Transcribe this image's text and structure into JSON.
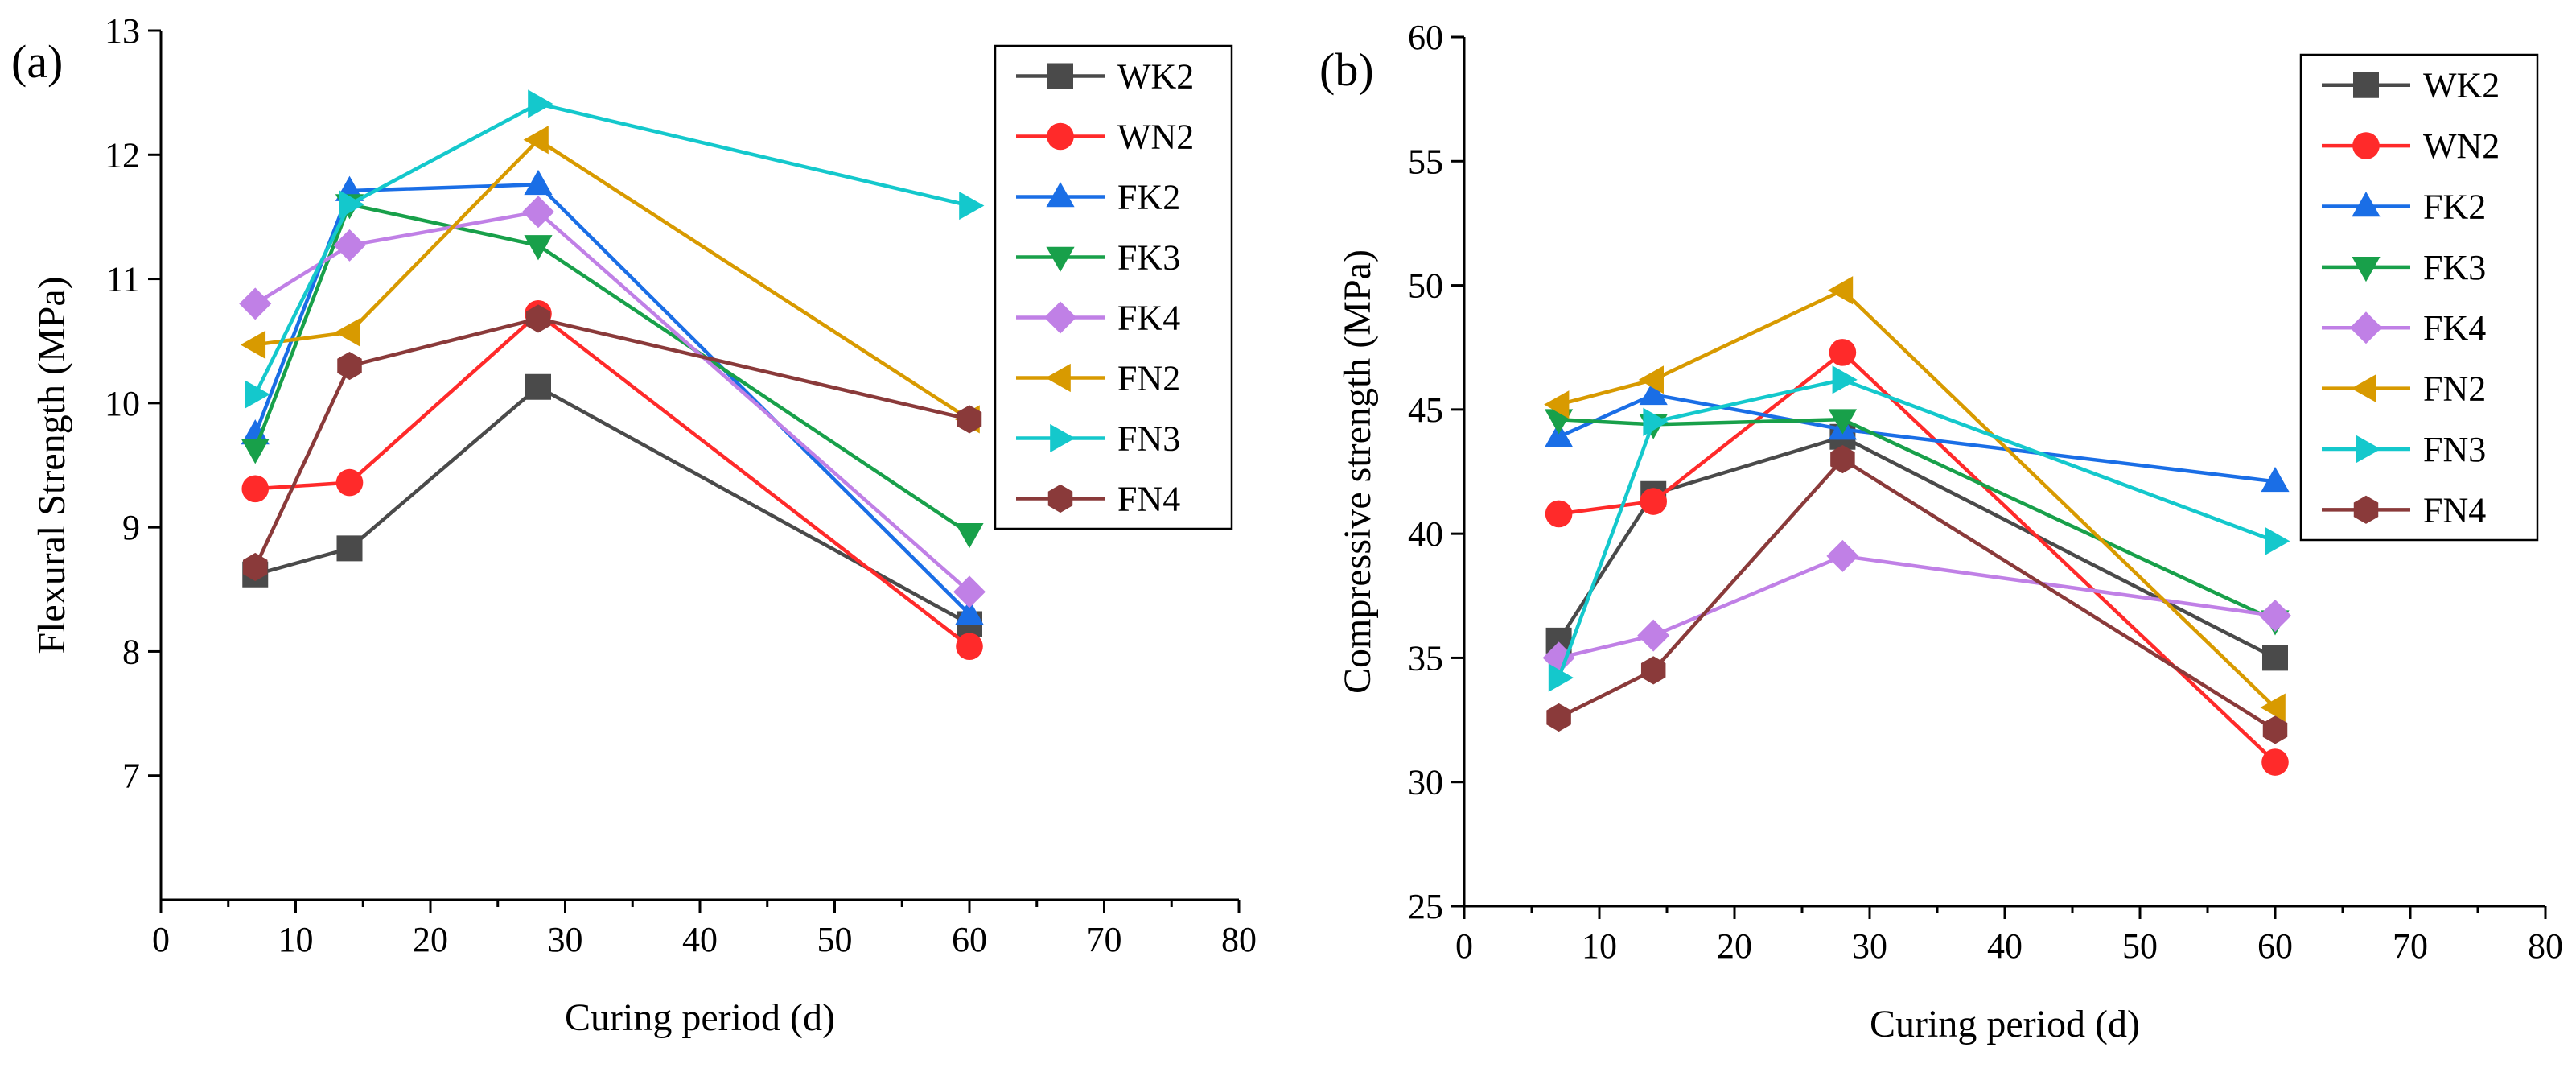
{
  "chart_data": [
    {
      "type": "line",
      "panel_label": "(a)",
      "title": "",
      "xlabel": "Curing period (d)",
      "ylabel": "Flexural Strength (MPa)",
      "xlim": [
        0,
        80
      ],
      "ylim": [
        6,
        13
      ],
      "xticks": [
        0,
        10,
        20,
        30,
        40,
        50,
        60,
        70,
        80
      ],
      "yticks": [
        7,
        8,
        9,
        10,
        11,
        12,
        13
      ],
      "grid": false,
      "legend_position": "top-right",
      "x": [
        7,
        14,
        28,
        60
      ],
      "series": [
        {
          "name": "WK2",
          "marker": "square",
          "color": "#4a4a4a",
          "values": [
            8.62,
            8.83,
            10.13,
            8.22
          ]
        },
        {
          "name": "WN2",
          "marker": "circle",
          "color": "#ff2a2a",
          "values": [
            9.31,
            9.36,
            10.72,
            8.04
          ]
        },
        {
          "name": "FK2",
          "marker": "triangle-up",
          "color": "#1a6ee6",
          "values": [
            9.75,
            11.71,
            11.76,
            8.3
          ]
        },
        {
          "name": "FK3",
          "marker": "triangle-down",
          "color": "#18a04a",
          "values": [
            9.63,
            11.6,
            11.27,
            8.95
          ]
        },
        {
          "name": "FK4",
          "marker": "diamond",
          "color": "#c080e6",
          "values": [
            10.8,
            11.27,
            11.54,
            8.48
          ]
        },
        {
          "name": "FN2",
          "marker": "triangle-left",
          "color": "#d89a00",
          "values": [
            10.47,
            10.57,
            12.12,
            9.87
          ]
        },
        {
          "name": "FN3",
          "marker": "triangle-right",
          "color": "#14c8cc",
          "values": [
            10.07,
            11.6,
            12.41,
            11.59
          ]
        },
        {
          "name": "FN4",
          "marker": "hexagon",
          "color": "#8a3a3a",
          "values": [
            8.68,
            10.3,
            10.68,
            9.87
          ]
        }
      ]
    },
    {
      "type": "line",
      "panel_label": "(b)",
      "title": "",
      "xlabel": "Curing period (d)",
      "ylabel": "Compressive strength (MPa)",
      "xlim": [
        0,
        80
      ],
      "ylim": [
        25,
        60
      ],
      "xticks": [
        0,
        10,
        20,
        30,
        40,
        50,
        60,
        70,
        80
      ],
      "yticks": [
        25,
        30,
        35,
        40,
        45,
        50,
        55,
        60
      ],
      "grid": false,
      "legend_position": "top-right",
      "x": [
        7,
        14,
        28,
        60
      ],
      "series": [
        {
          "name": "WK2",
          "marker": "square",
          "color": "#4a4a4a",
          "values": [
            35.7,
            41.6,
            43.9,
            35.0
          ]
        },
        {
          "name": "WN2",
          "marker": "circle",
          "color": "#ff2a2a",
          "values": [
            40.8,
            41.3,
            47.3,
            30.8
          ]
        },
        {
          "name": "FK2",
          "marker": "triangle-up",
          "color": "#1a6ee6",
          "values": [
            43.9,
            45.6,
            44.2,
            42.1
          ]
        },
        {
          "name": "FK3",
          "marker": "triangle-down",
          "color": "#18a04a",
          "values": [
            44.6,
            44.4,
            44.6,
            36.5
          ]
        },
        {
          "name": "FK4",
          "marker": "diamond",
          "color": "#c080e6",
          "values": [
            35.0,
            35.9,
            39.1,
            36.7
          ]
        },
        {
          "name": "FN2",
          "marker": "triangle-left",
          "color": "#d89a00",
          "values": [
            45.2,
            46.2,
            49.8,
            33.0
          ]
        },
        {
          "name": "FN3",
          "marker": "triangle-right",
          "color": "#14c8cc",
          "values": [
            34.2,
            44.5,
            46.2,
            39.7
          ]
        },
        {
          "name": "FN4",
          "marker": "hexagon",
          "color": "#8a3a3a",
          "values": [
            32.6,
            34.5,
            43.0,
            32.1
          ]
        }
      ]
    }
  ]
}
